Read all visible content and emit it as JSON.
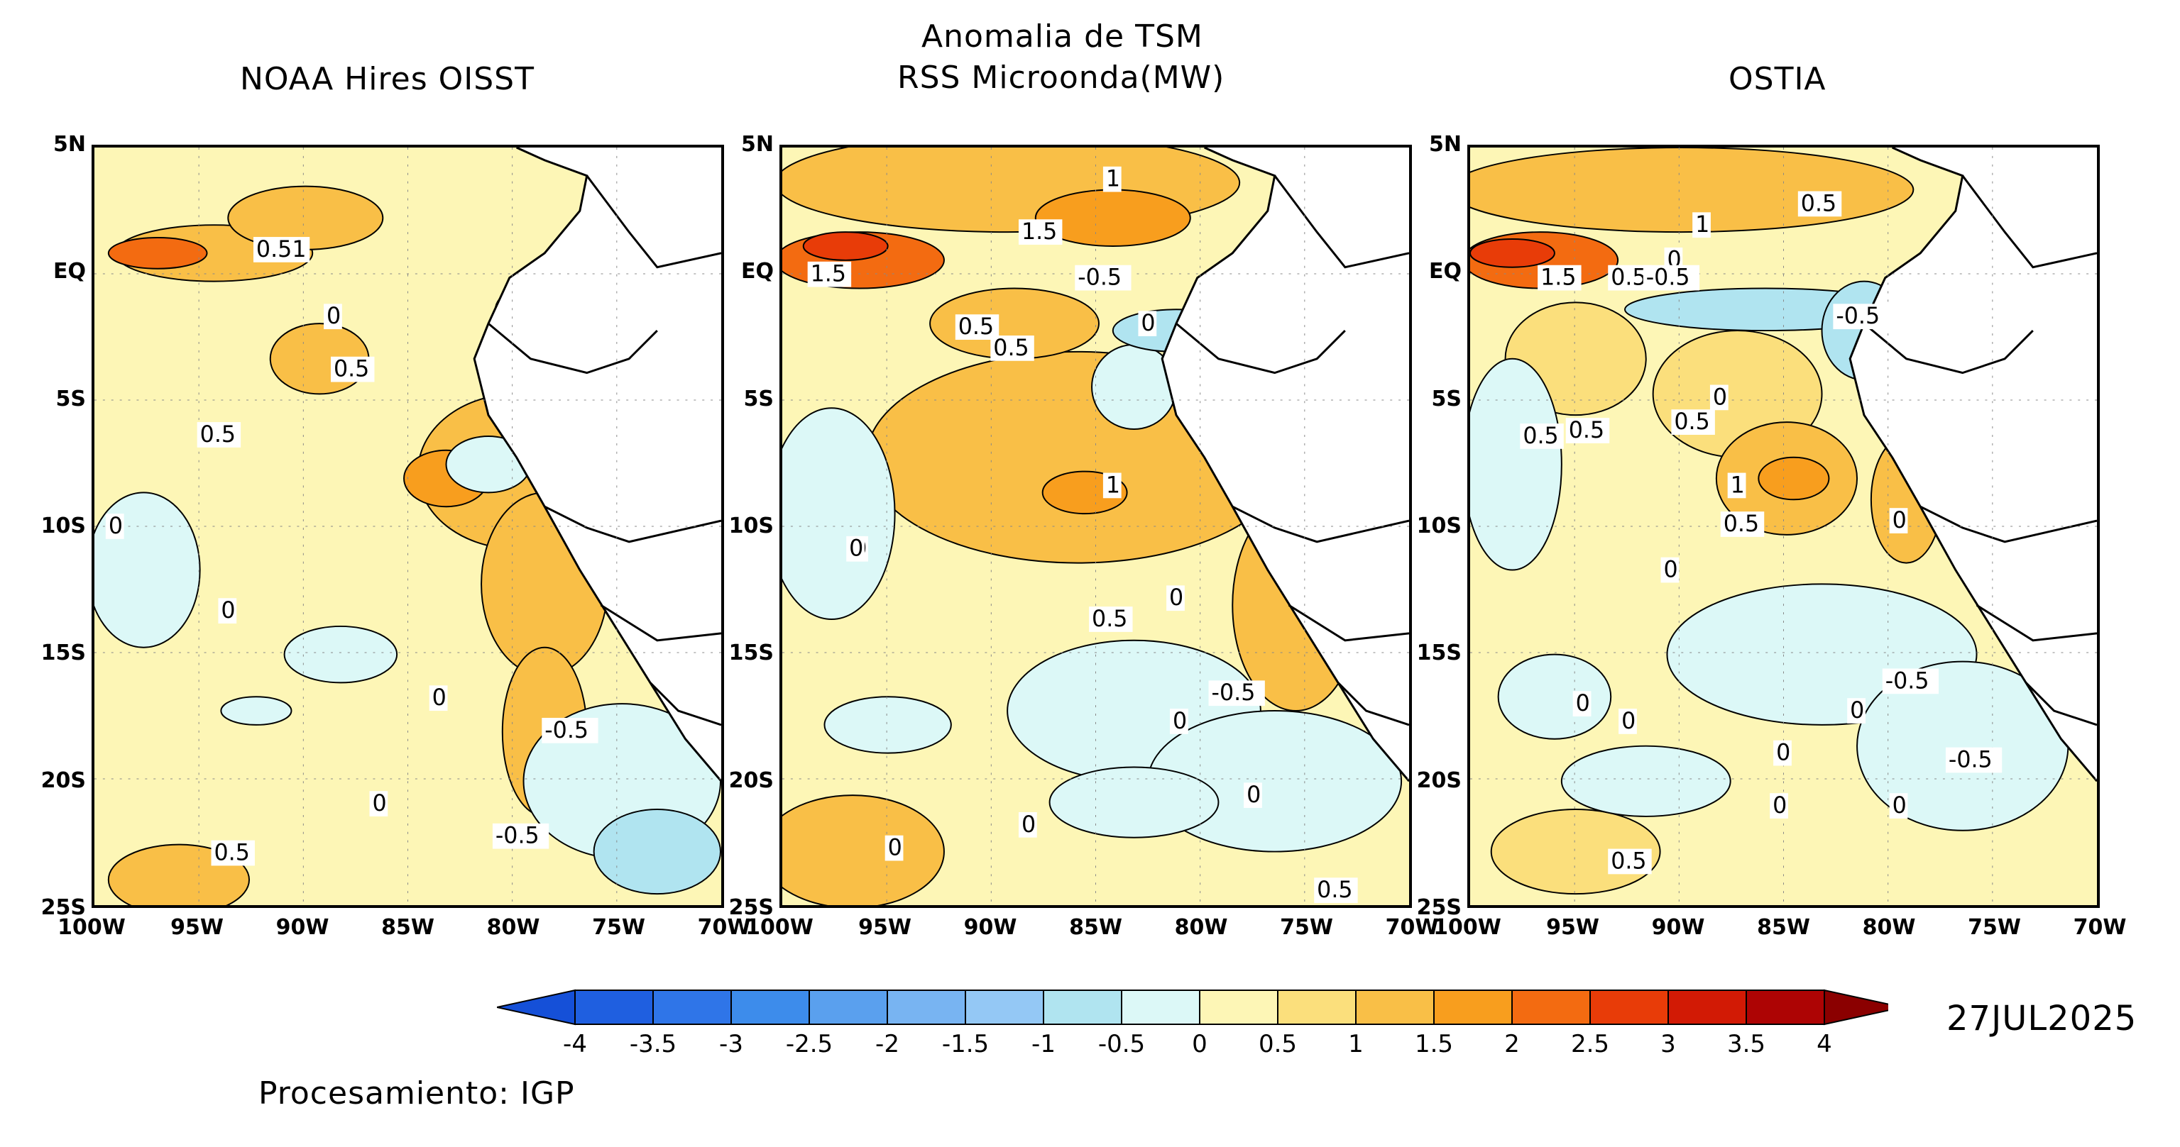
{
  "title": {
    "line1": "Anomalia de TSM",
    "line2": "RSS Microonda(MW)"
  },
  "panels": [
    {
      "name": "NOAA Hires OISST",
      "labels": [
        "0.51",
        "0",
        "0.5",
        "0.5",
        "0",
        "0",
        "0",
        "-0.5",
        "0",
        "-0.5",
        "0.5"
      ]
    },
    {
      "name": "",
      "labels": [
        "1",
        "1.5",
        "1.5",
        "-0.5",
        "0.5",
        "0.5",
        "0",
        "1",
        "0",
        "0",
        "0.5",
        "0",
        "-0.5",
        "0",
        "0",
        "0",
        "0",
        "0.5"
      ]
    },
    {
      "name": "OSTIA",
      "labels": [
        "0.5",
        "1",
        "0",
        "1.5",
        "0.5",
        "-0.5",
        "-0.5",
        "0",
        "0.5",
        "0.5",
        "0.5",
        "1",
        "0.5",
        "0",
        "0",
        "0",
        "-0.5",
        "0",
        "0",
        "0",
        "-0.5",
        "0",
        "0",
        "0.5"
      ]
    }
  ],
  "lat_ticks": [
    "5N",
    "EQ",
    "5S",
    "10S",
    "15S",
    "20S",
    "25S"
  ],
  "lon_ticks": [
    "100W",
    "95W",
    "90W",
    "85W",
    "80W",
    "75W",
    "70W"
  ],
  "colorbar": {
    "ticks": [
      "-4",
      "-3.5",
      "-3",
      "-2.5",
      "-2",
      "-1.5",
      "-1",
      "-0.5",
      "0",
      "0.5",
      "1",
      "1.5",
      "2",
      "2.5",
      "3",
      "3.5",
      "4"
    ],
    "colors": [
      "#1f5fe0",
      "#2f75e8",
      "#3d8ceb",
      "#5aa0ee",
      "#78b4f2",
      "#94c8f5",
      "#b0e4f0",
      "#dcf8f7",
      "#fdf6b6",
      "#fbdf7c",
      "#f9bf47",
      "#f89e1e",
      "#f36b11",
      "#e83c08",
      "#d21a05",
      "#ad0404"
    ]
  },
  "date": "27JUL2025",
  "credit": "Procesamiento: IGP"
}
